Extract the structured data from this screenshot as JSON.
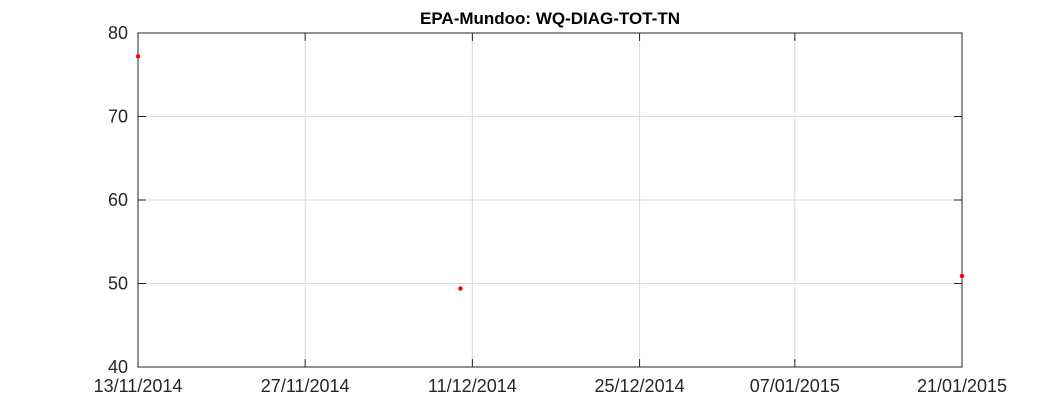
{
  "chart_data": {
    "type": "scatter",
    "title": "EPA-Mundoo: WQ-DIAG-TOT-TN",
    "xlabel": "",
    "ylabel": "",
    "xlim": [
      "2014-11-13",
      "2015-01-21"
    ],
    "ylim": [
      40,
      80
    ],
    "grid": true,
    "x_ticks": [
      {
        "date": "2014-11-13",
        "label": "13/11/2014"
      },
      {
        "date": "2014-11-27",
        "label": "27/11/2014"
      },
      {
        "date": "2014-12-11",
        "label": "11/12/2014"
      },
      {
        "date": "2014-12-25",
        "label": "25/12/2014"
      },
      {
        "date": "2015-01-07",
        "label": "07/01/2015"
      },
      {
        "date": "2015-01-21",
        "label": "21/01/2015"
      }
    ],
    "y_ticks": [
      {
        "value": 40,
        "label": "40"
      },
      {
        "value": 50,
        "label": "50"
      },
      {
        "value": 60,
        "label": "60"
      },
      {
        "value": 70,
        "label": "70"
      },
      {
        "value": 80,
        "label": "80"
      }
    ],
    "series": [
      {
        "color": "#ff0000",
        "points": [
          {
            "x": "2014-11-13",
            "y": 77.2
          },
          {
            "x": "2014-12-10",
            "y": 49.4
          },
          {
            "x": "2015-01-21",
            "y": 50.9
          }
        ]
      }
    ]
  }
}
